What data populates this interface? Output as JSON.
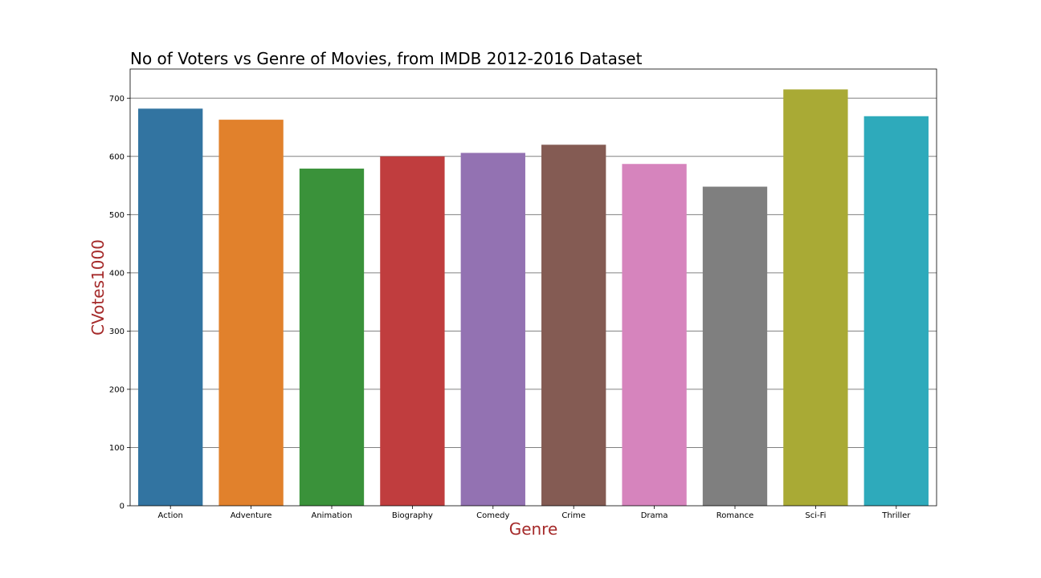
{
  "chart_data": {
    "type": "bar",
    "title": "No of Voters vs Genre of Movies, from IMDB 2012-2016 Dataset",
    "xlabel": "Genre",
    "ylabel": "CVotes1000",
    "categories": [
      "Action",
      "Adventure",
      "Animation",
      "Biography",
      "Comedy",
      "Crime",
      "Drama",
      "Romance",
      "Sci-Fi",
      "Thriller"
    ],
    "values": [
      682,
      663,
      579,
      600,
      606,
      620,
      587,
      548,
      715,
      669
    ],
    "colors": [
      "#3274a1",
      "#e1812c",
      "#3a923a",
      "#c03d3e",
      "#9372b2",
      "#845b53",
      "#d684bd",
      "#7f7f7f",
      "#a9aa35",
      "#2eaabb"
    ],
    "axis_label_color": "#a52a2a",
    "ylim": [
      0,
      750
    ],
    "yticks": [
      0,
      100,
      200,
      300,
      400,
      500,
      600,
      700
    ],
    "grid": true
  }
}
